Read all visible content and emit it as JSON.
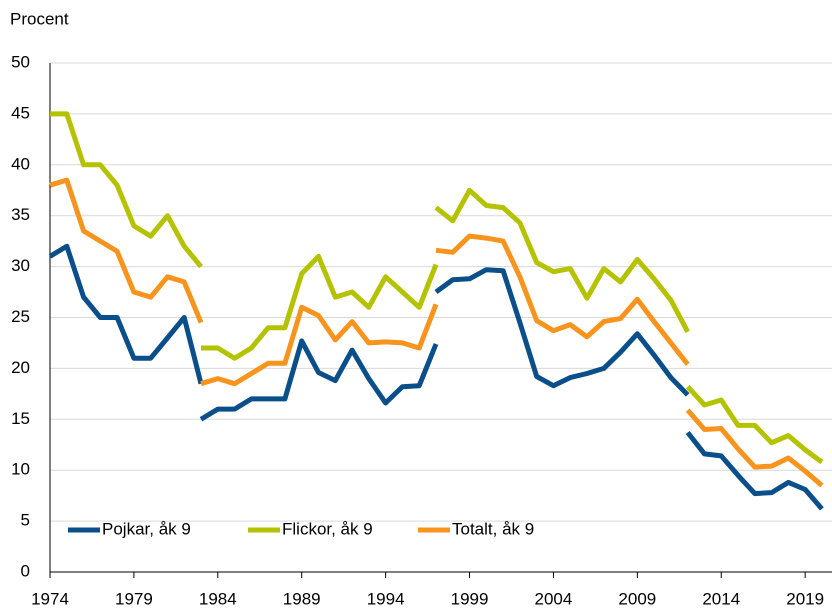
{
  "chart_data": {
    "type": "line",
    "ylabel": "Procent",
    "x": [
      1974,
      1975,
      1976,
      1977,
      1978,
      1979,
      1980,
      1981,
      1982,
      1983,
      null,
      1983,
      1984,
      1985,
      1986,
      1987,
      1988,
      1989,
      1990,
      1991,
      1992,
      1993,
      1994,
      1995,
      1996,
      1997,
      null,
      1997,
      1998,
      1999,
      2000,
      2001,
      2002,
      2003,
      2004,
      2005,
      2006,
      2007,
      2008,
      2009,
      2010,
      2011,
      2012,
      null,
      2012,
      2013,
      2014,
      2015,
      2016,
      2017,
      2018,
      2019,
      2020
    ],
    "series": [
      {
        "name": "Pojkar, åk 9",
        "color": "#0b4f8a",
        "values": [
          31,
          32,
          27,
          25,
          25,
          21,
          21,
          23,
          25,
          18.5,
          null,
          15,
          16,
          16,
          17,
          17,
          17,
          22.7,
          19.6,
          18.8,
          21.8,
          19,
          16.6,
          18.2,
          18.3,
          22.4,
          null,
          27.5,
          28.7,
          28.8,
          29.7,
          29.6,
          24.5,
          19.2,
          18.3,
          19.1,
          19.5,
          20,
          21.6,
          23.4,
          21.3,
          19.1,
          17.4,
          null,
          13.7,
          11.6,
          11.4,
          9.5,
          7.7,
          7.8,
          8.8,
          8.1,
          6.2
        ]
      },
      {
        "name": "Flickor, åk 9",
        "color": "#b5c200",
        "values": [
          45,
          45,
          40,
          40,
          38,
          34,
          33,
          35,
          32,
          30,
          null,
          22,
          22,
          21,
          22,
          24,
          24,
          29.3,
          31,
          27,
          27.5,
          26,
          29,
          27.5,
          26,
          30.2,
          null,
          35.8,
          34.5,
          37.5,
          36,
          35.8,
          34.3,
          30.4,
          29.5,
          29.8,
          26.9,
          29.8,
          28.5,
          30.7,
          28.8,
          26.7,
          23.6,
          null,
          18.2,
          16.4,
          16.9,
          14.4,
          14.4,
          12.7,
          13.4,
          12,
          10.8
        ]
      },
      {
        "name": "Totalt, åk 9",
        "color": "#f7941d",
        "values": [
          38,
          38.5,
          33.5,
          32.5,
          31.5,
          27.5,
          27,
          29,
          28.5,
          24.5,
          null,
          18.5,
          19,
          18.5,
          19.5,
          20.5,
          20.5,
          26,
          25.2,
          22.8,
          24.6,
          22.5,
          22.6,
          22.5,
          22,
          26.3,
          null,
          31.6,
          31.4,
          33,
          32.8,
          32.5,
          29,
          24.7,
          23.7,
          24.3,
          23.1,
          24.6,
          24.9,
          26.8,
          24.6,
          22.5,
          20.4,
          null,
          15.9,
          14,
          14.1,
          12.1,
          10.3,
          10.4,
          11.2,
          9.9,
          8.5
        ]
      }
    ],
    "xlim": [
      1974,
      2020.6
    ],
    "xticks": [
      1974,
      1979,
      1984,
      1989,
      1994,
      1999,
      2004,
      2009,
      2014,
      2019
    ],
    "ylim": [
      0,
      50
    ],
    "yticks": [
      0,
      5,
      10,
      15,
      20,
      25,
      30,
      35,
      40,
      45,
      50
    ],
    "grid": true,
    "legend": "lower left"
  }
}
